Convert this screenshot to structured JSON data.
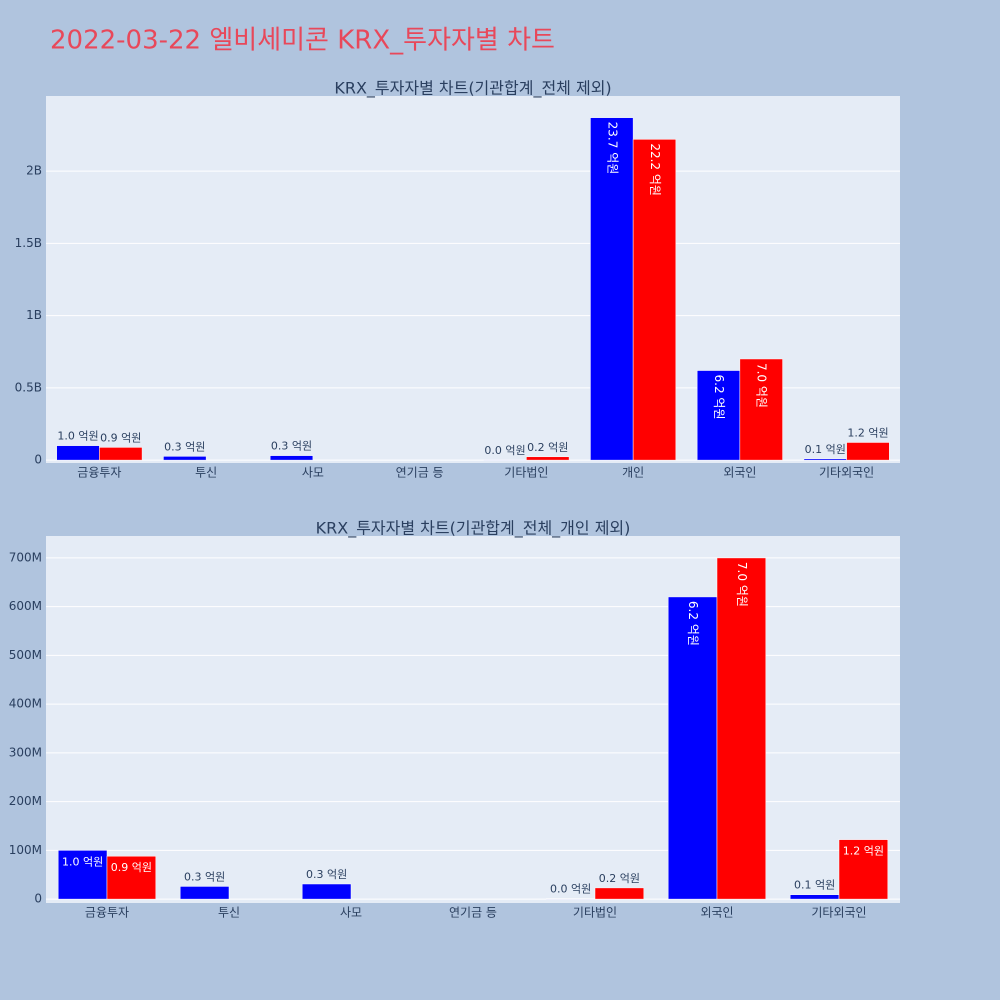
{
  "title": "2022-03-22 엘비세미콘 KRX_투자자별 차트",
  "chart_data": [
    {
      "type": "bar",
      "title": "KRX_투자자별 차트(기관합계_전체 제외)",
      "categories": [
        "금융투자",
        "투신",
        "사모",
        "연기금 등",
        "기타법인",
        "개인",
        "외국인",
        "기타외국인"
      ],
      "series": [
        {
          "color": "#0000ff",
          "values": [
            100000000,
            26000000,
            31000000,
            null,
            1000000,
            2370000000,
            620000000,
            9000000
          ],
          "value_labels": [
            "1.0 억원",
            "0.3 억원",
            "0.3 억원",
            null,
            "0.0 억원",
            "23.7 억원",
            "6.2 억원",
            "0.1 억원"
          ]
        },
        {
          "color": "#ff0000",
          "values": [
            88000000,
            null,
            null,
            null,
            23000000,
            2220000000,
            700000000,
            122000000
          ],
          "value_labels": [
            "0.9 억원",
            null,
            null,
            null,
            "0.2 억원",
            "22.2 억원",
            "7.0 억원",
            "1.2 억원"
          ]
        }
      ],
      "ylim": [
        -20000000,
        2520000000
      ],
      "yticks": [
        0,
        {
          "value": 500000000,
          "label": "0.5B"
        },
        {
          "value": 1000000000,
          "label": "1B"
        },
        {
          "value": 1500000000,
          "label": "1.5B"
        },
        {
          "value": 2000000000,
          "label": "2B"
        }
      ],
      "grid": true
    },
    {
      "type": "bar",
      "title": "KRX_투자자별 차트(기관합계_전체_개인 제외)",
      "categories": [
        "금융투자",
        "투신",
        "사모",
        "연기금 등",
        "기타법인",
        "외국인",
        "기타외국인"
      ],
      "series": [
        {
          "color": "#0000ff",
          "values": [
            100000000,
            26000000,
            31000000,
            null,
            1000000,
            620000000,
            9000000
          ],
          "value_labels": [
            "1.0 억원",
            "0.3 억원",
            "0.3 억원",
            null,
            "0.0 억원",
            "6.2 억원",
            "0.1 억원"
          ]
        },
        {
          "color": "#ff0000",
          "values": [
            88000000,
            null,
            null,
            null,
            23000000,
            700000000,
            122000000
          ],
          "value_labels": [
            "0.9 억원",
            null,
            null,
            null,
            "0.2 억원",
            "7.0 억원",
            "1.2 억원"
          ]
        }
      ],
      "ylim": [
        -8000000,
        745000000
      ],
      "yticks": [
        0,
        {
          "value": 100000000,
          "label": "100M"
        },
        {
          "value": 200000000,
          "label": "200M"
        },
        {
          "value": 300000000,
          "label": "300M"
        },
        {
          "value": 400000000,
          "label": "400M"
        },
        {
          "value": 500000000,
          "label": "500M"
        },
        {
          "value": 600000000,
          "label": "600M"
        },
        {
          "value": 700000000,
          "label": "700M"
        }
      ],
      "grid": true
    }
  ]
}
